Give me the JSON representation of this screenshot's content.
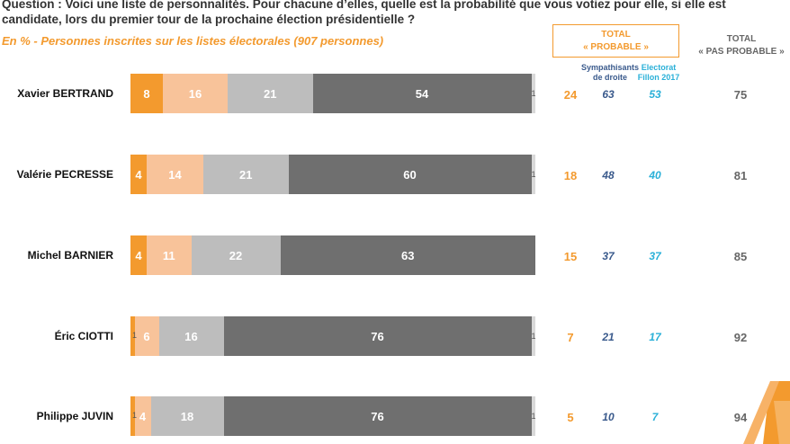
{
  "question": "Question : Voici une liste de personnalités. Pour chacune d’elles, quelle est la probabilité que vous votiez pour elle, si elle est candidate, lors du premier tour de la prochaine élection présidentielle ?",
  "subtitle": "En % - Personnes inscrites sur les listes électorales (907 personnes)",
  "headers": {
    "total_probable_line1": "TOTAL",
    "total_probable_line2": "« PROBABLE »",
    "sympathisants_line1": "Sympathisants",
    "sympathisants_line2": "de droite",
    "electorat_line1": "Electorat",
    "electorat_line2": "Fillon 2017",
    "total_pas_line1": "TOTAL",
    "total_pas_line2": "« PAS PROBABLE »"
  },
  "colors": {
    "seg1": "#f39a2e",
    "seg2": "#f8c39a",
    "seg3": "#bdbdbd",
    "seg4": "#6f6f6f",
    "seg5": "#d9d9d9"
  },
  "chart_data": {
    "type": "bar",
    "orientation": "horizontal-stacked-100",
    "categories": [
      "Xavier BERTRAND",
      "Valérie PECRESSE",
      "Michel BARNIER",
      "Éric CIOTTI",
      "Philippe JUVIN"
    ],
    "series": [
      {
        "name": "segment 1",
        "values": [
          8,
          4,
          4,
          1,
          1
        ],
        "labels": [
          "8",
          "4",
          "4",
          "",
          ""
        ]
      },
      {
        "name": "segment 2",
        "values": [
          16,
          14,
          11,
          6,
          4
        ],
        "labels": [
          "16",
          "14",
          "11",
          "6",
          "4"
        ]
      },
      {
        "name": "segment 3",
        "values": [
          21,
          21,
          22,
          16,
          18
        ],
        "labels": [
          "21",
          "21",
          "22",
          "16",
          "18"
        ]
      },
      {
        "name": "segment 4",
        "values": [
          54,
          60,
          63,
          76,
          76
        ],
        "labels": [
          "54",
          "60",
          "63",
          "76",
          "76"
        ]
      },
      {
        "name": "segment 5",
        "values": [
          1,
          1,
          0,
          1,
          1
        ],
        "labels": [
          "1",
          "1",
          "",
          "1",
          "1"
        ]
      }
    ],
    "inline_small_labels": [
      "",
      "",
      "",
      "1",
      "1"
    ],
    "total_probable": [
      "24",
      "18",
      "15",
      "7",
      "5"
    ],
    "sympathisants_de_droite": [
      "63",
      "48",
      "37",
      "21",
      "10"
    ],
    "electorat_fillon_2017": [
      "53",
      "40",
      "37",
      "17",
      "7"
    ],
    "total_pas_probable": [
      "75",
      "81",
      "85",
      "92",
      "94"
    ],
    "xlim": [
      0,
      100
    ]
  }
}
